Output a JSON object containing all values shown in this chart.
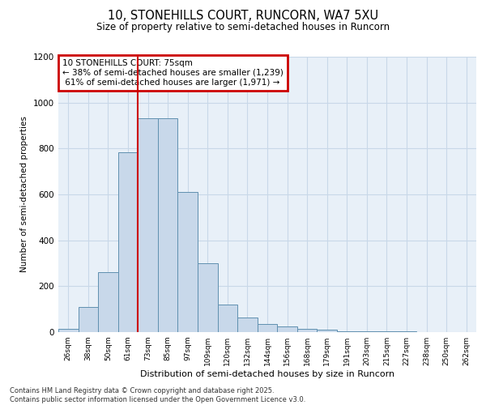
{
  "title_line1": "10, STONEHILLS COURT, RUNCORN, WA7 5XU",
  "title_line2": "Size of property relative to semi-detached houses in Runcorn",
  "xlabel": "Distribution of semi-detached houses by size in Runcorn",
  "ylabel": "Number of semi-detached properties",
  "property_label": "10 STONEHILLS COURT: 75sqm",
  "pct_smaller": 38,
  "count_smaller": 1239,
  "pct_larger": 61,
  "count_larger": 1971,
  "bin_labels": [
    "26sqm",
    "38sqm",
    "50sqm",
    "61sqm",
    "73sqm",
    "85sqm",
    "97sqm",
    "109sqm",
    "120sqm",
    "132sqm",
    "144sqm",
    "156sqm",
    "168sqm",
    "179sqm",
    "191sqm",
    "203sqm",
    "215sqm",
    "227sqm",
    "238sqm",
    "250sqm",
    "262sqm"
  ],
  "bar_values": [
    15,
    110,
    260,
    785,
    930,
    930,
    610,
    300,
    120,
    65,
    35,
    25,
    15,
    10,
    5,
    5,
    3,
    2,
    1,
    1,
    1
  ],
  "bar_color": "#c8d8ea",
  "bar_edge_color": "#6090b0",
  "vline_color": "#cc0000",
  "vline_bin_index": 4,
  "annotation_box_color": "#cc0000",
  "grid_color": "#c8d8e8",
  "bg_color": "#e8f0f8",
  "ylim": [
    0,
    1200
  ],
  "yticks": [
    0,
    200,
    400,
    600,
    800,
    1000,
    1200
  ],
  "footer_line1": "Contains HM Land Registry data © Crown copyright and database right 2025.",
  "footer_line2": "Contains public sector information licensed under the Open Government Licence v3.0."
}
